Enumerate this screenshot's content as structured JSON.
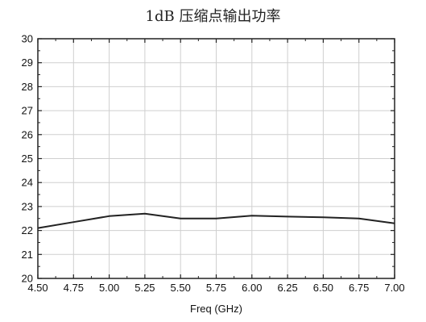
{
  "chart_data": {
    "type": "line",
    "title": "1dB 压缩点输出功率",
    "xlabel": "Freq (GHz)",
    "ylabel": "",
    "xlim": [
      4.5,
      7.0
    ],
    "ylim": [
      20,
      30
    ],
    "x_ticks": [
      "4.50",
      "4.75",
      "5.00",
      "5.25",
      "5.50",
      "5.75",
      "6.00",
      "6.25",
      "6.50",
      "6.75",
      "7.00"
    ],
    "y_ticks": [
      "20",
      "21",
      "22",
      "23",
      "24",
      "25",
      "26",
      "27",
      "28",
      "29",
      "30"
    ],
    "grid": true,
    "series": [
      {
        "color": "#222222",
        "x": [
          4.5,
          4.75,
          5.0,
          5.25,
          5.5,
          5.75,
          6.0,
          6.25,
          6.5,
          6.75,
          7.0
        ],
        "y": [
          22.1,
          22.35,
          22.6,
          22.7,
          22.5,
          22.5,
          22.62,
          22.58,
          22.55,
          22.5,
          22.3
        ]
      }
    ]
  }
}
